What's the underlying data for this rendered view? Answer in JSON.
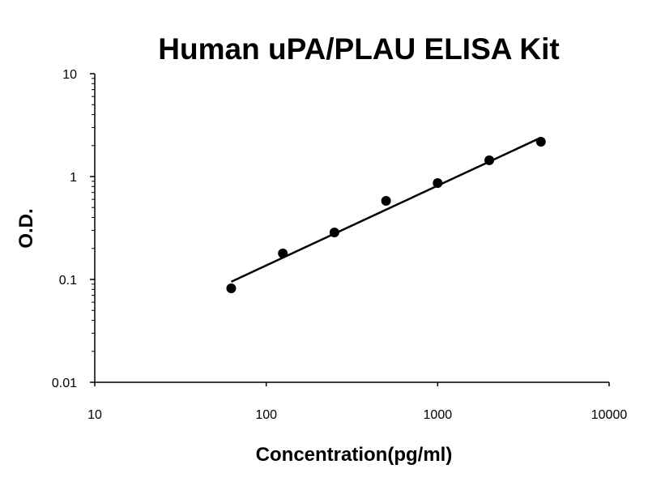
{
  "chart_data": {
    "type": "scatter",
    "title": "Human uPA/PLAU ELISA Kit",
    "xlabel": "Concentration(pg/ml)",
    "ylabel": "O.D.",
    "xscale": "log",
    "yscale": "log",
    "xlim": [
      10,
      10000
    ],
    "ylim": [
      0.01,
      10
    ],
    "xticks": [
      "10",
      "100",
      "1000",
      "10000"
    ],
    "yticks": [
      "0.01",
      "0.1",
      "1",
      "10"
    ],
    "grid": false,
    "series": [
      {
        "x": [
          62.5,
          125,
          250,
          500,
          1000,
          2000,
          4000
        ],
        "y": [
          0.082,
          0.179,
          0.286,
          0.58,
          0.865,
          1.44,
          2.18
        ],
        "marker": "circle",
        "color": "#000000"
      }
    ],
    "fit_line": {
      "x": [
        62.5,
        4000
      ],
      "y": [
        0.095,
        2.39
      ],
      "color": "#000000"
    }
  }
}
